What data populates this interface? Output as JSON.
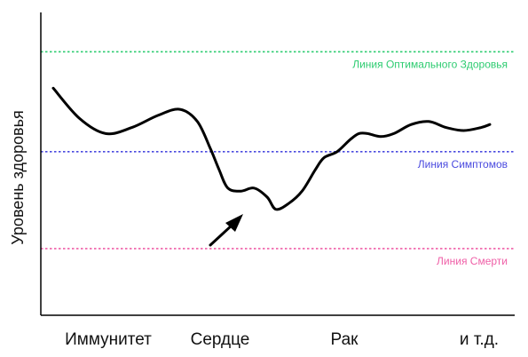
{
  "chart_data": {
    "type": "line",
    "ylabel": "Уровень здоровья",
    "categories": [
      "Иммунитет",
      "Сердце",
      "Рак",
      "и т.д."
    ],
    "grid": false,
    "ylim": [
      0,
      100
    ],
    "reference_lines": [
      {
        "label": "Линия Оптимального Здоровья",
        "value": 87,
        "color": "#2ecc71"
      },
      {
        "label": "Линия Симптомов",
        "value": 54,
        "color": "#4a4adf"
      },
      {
        "label": "Линия Смерти",
        "value": 22,
        "color": "#ef5fa7"
      }
    ],
    "series": [
      {
        "color": "#000000",
        "x": [
          0,
          0.06,
          0.12,
          0.18,
          0.24,
          0.29,
          0.33,
          0.36,
          0.38,
          0.4,
          0.43,
          0.46,
          0.49,
          0.51,
          0.54,
          0.57,
          0.6,
          0.62,
          0.65,
          0.68,
          0.7,
          0.72,
          0.75,
          0.78,
          0.82,
          0.86,
          0.9,
          0.94,
          0.98,
          1.0
        ],
        "y": [
          75,
          65,
          60,
          62,
          66,
          68,
          64,
          55,
          48,
          42,
          41,
          42,
          39,
          35,
          37,
          41,
          48,
          52,
          54,
          58,
          60,
          60,
          59,
          60,
          63,
          64,
          62,
          61,
          62,
          63
        ]
      }
    ],
    "annotations": [
      {
        "type": "arrow",
        "points_to": "Сердце"
      }
    ]
  }
}
